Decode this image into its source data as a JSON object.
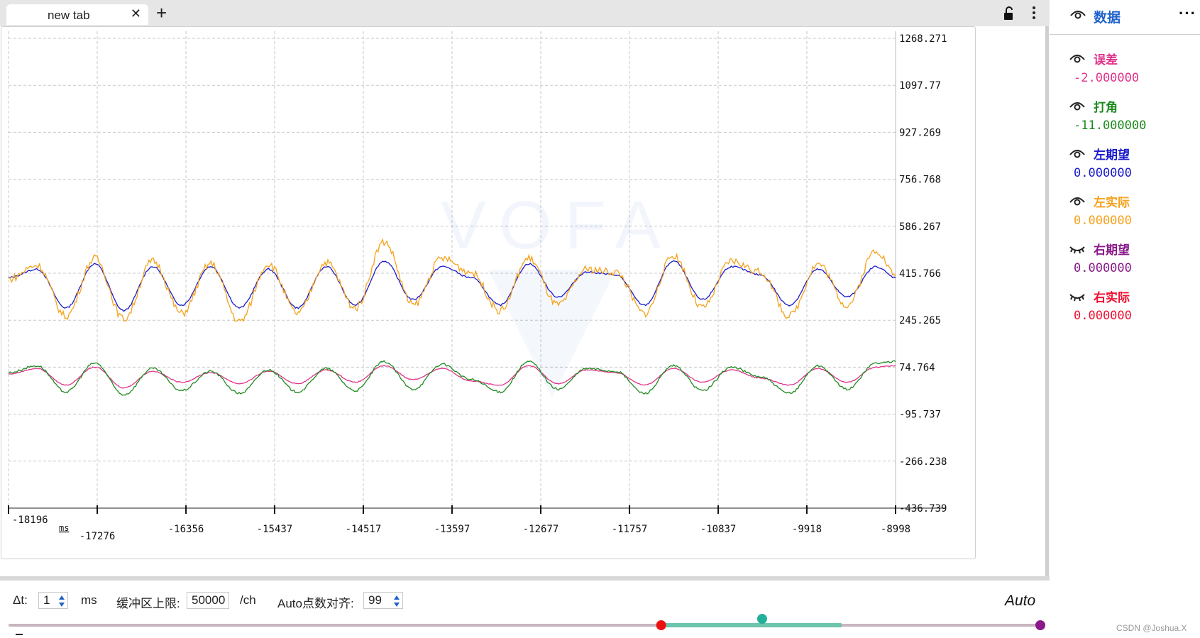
{
  "tabbar": {
    "tab_label": "new tab",
    "close_glyph": "✕",
    "add_glyph": "+"
  },
  "plot": {
    "watermark": "VOFA",
    "x_unit": "ms",
    "x_ticks": [
      "-18196",
      "-17276",
      "-16356",
      "-15437",
      "-14517",
      "-13597",
      "-12677",
      "-11757",
      "-10837",
      "-9918",
      "-8998"
    ],
    "y_ticks": [
      "1268.271",
      "1097.77",
      "927.269",
      "756.768",
      "586.267",
      "415.766",
      "245.265",
      "74.764",
      "-95.737",
      "-266.238",
      "-436.739"
    ]
  },
  "chart_data": {
    "type": "line",
    "title": "",
    "xlabel": "ms",
    "ylabel": "",
    "xlim": [
      -18196,
      -8998
    ],
    "ylim": [
      -436.739,
      1268.271
    ],
    "x_ticks": [
      -18196,
      -17276,
      -16356,
      -15437,
      -14517,
      -13597,
      -12677,
      -11757,
      -10837,
      -9918,
      -8998
    ],
    "series": [
      {
        "name": "左期望",
        "color": "#1a1acc",
        "x": [
          -18196,
          -17900,
          -17600,
          -17300,
          -17000,
          -16700,
          -16400,
          -16100,
          -15800,
          -15500,
          -15200,
          -14900,
          -14600,
          -14300,
          -14000,
          -13700,
          -13400,
          -13100,
          -12800,
          -12500,
          -12200,
          -11900,
          -11600,
          -11300,
          -11000,
          -10700,
          -10400,
          -10100,
          -9800,
          -9500,
          -9200,
          -8998
        ],
        "values": [
          400,
          430,
          290,
          450,
          280,
          440,
          300,
          440,
          290,
          430,
          290,
          440,
          300,
          460,
          320,
          440,
          400,
          300,
          450,
          330,
          420,
          410,
          300,
          460,
          320,
          440,
          410,
          300,
          430,
          330,
          440,
          400
        ]
      },
      {
        "name": "左实际",
        "color": "#f5a21b",
        "x": [
          -18196,
          -17900,
          -17600,
          -17300,
          -17000,
          -16700,
          -16400,
          -16100,
          -15800,
          -15500,
          -15200,
          -14900,
          -14600,
          -14300,
          -14000,
          -13700,
          -13400,
          -13100,
          -12800,
          -12500,
          -12200,
          -11900,
          -11600,
          -11300,
          -11000,
          -10700,
          -10400,
          -10100,
          -9800,
          -9500,
          -9200,
          -8998
        ],
        "values": [
          395,
          445,
          260,
          470,
          250,
          460,
          270,
          450,
          240,
          450,
          270,
          455,
          290,
          530,
          300,
          470,
          420,
          280,
          470,
          300,
          430,
          420,
          270,
          480,
          290,
          460,
          420,
          260,
          450,
          300,
          500,
          410
        ]
      },
      {
        "name": "误差",
        "color": "#e0338a",
        "x": [
          -18196,
          -17900,
          -17600,
          -17300,
          -17000,
          -16700,
          -16400,
          -16100,
          -15800,
          -15500,
          -15200,
          -14900,
          -14600,
          -14300,
          -14000,
          -13700,
          -13400,
          -13100,
          -12800,
          -12500,
          -12200,
          -11900,
          -11600,
          -11300,
          -11000,
          -10700,
          -10400,
          -10100,
          -9800,
          -9500,
          -9200,
          -8998
        ],
        "values": [
          50,
          70,
          10,
          75,
          0,
          60,
          20,
          55,
          15,
          60,
          15,
          65,
          20,
          80,
          30,
          70,
          25,
          10,
          80,
          15,
          65,
          55,
          10,
          70,
          20,
          65,
          35,
          10,
          70,
          20,
          75,
          80
        ]
      },
      {
        "name": "打角",
        "color": "#1e8a1e",
        "x": [
          -18196,
          -17900,
          -17600,
          -17300,
          -17000,
          -16700,
          -16400,
          -16100,
          -15800,
          -15500,
          -15200,
          -14900,
          -14600,
          -14300,
          -14000,
          -13700,
          -13400,
          -13100,
          -12800,
          -12500,
          -12200,
          -11900,
          -11600,
          -11300,
          -11000,
          -10700,
          -10400,
          -10100,
          -9800,
          -9500,
          -9200,
          -8998
        ],
        "values": [
          55,
          80,
          -15,
          90,
          -25,
          70,
          -10,
          60,
          -20,
          65,
          -15,
          70,
          -10,
          95,
          -5,
          85,
          30,
          -15,
          95,
          -5,
          70,
          60,
          -20,
          80,
          -10,
          75,
          40,
          -20,
          80,
          -5,
          90,
          95
        ]
      }
    ]
  },
  "controls": {
    "dt_label": "Δt:",
    "dt_value": "1",
    "dt_unit": "ms",
    "buffer_label": "缓冲区上限:",
    "buffer_value": "50000",
    "buffer_unit": "/ch",
    "align_label": "Auto点数对齐:",
    "align_value": "99",
    "auto_label": "Auto"
  },
  "range_slider": {
    "start_fraction": 0.632,
    "mid_fraction": 0.73,
    "end_fraction": 0.807,
    "colors": {
      "start": "#ee1111",
      "mid": "#22b09a",
      "end": "#8a1a8a",
      "track": "#c9b6c0",
      "fill": "#6dc4ad"
    }
  },
  "sidebar": {
    "title": "数据",
    "more_glyph": "···",
    "channels": [
      {
        "name": "误差",
        "value": "-2.000000",
        "color": "#e0338a",
        "visible": true
      },
      {
        "name": "打角",
        "value": "-11.000000",
        "color": "#1e8a1e",
        "visible": true
      },
      {
        "name": "左期望",
        "value": "0.000000",
        "color": "#1a1acc",
        "visible": true
      },
      {
        "name": "左实际",
        "value": "0.000000",
        "color": "#f5a21b",
        "visible": true
      },
      {
        "name": "右期望",
        "value": "0.000000",
        "color": "#8a1a8a",
        "visible": false
      },
      {
        "name": "右实际",
        "value": "0.000000",
        "color": "#ee1133",
        "visible": false
      }
    ]
  },
  "credit": "CSDN @Joshua.X"
}
